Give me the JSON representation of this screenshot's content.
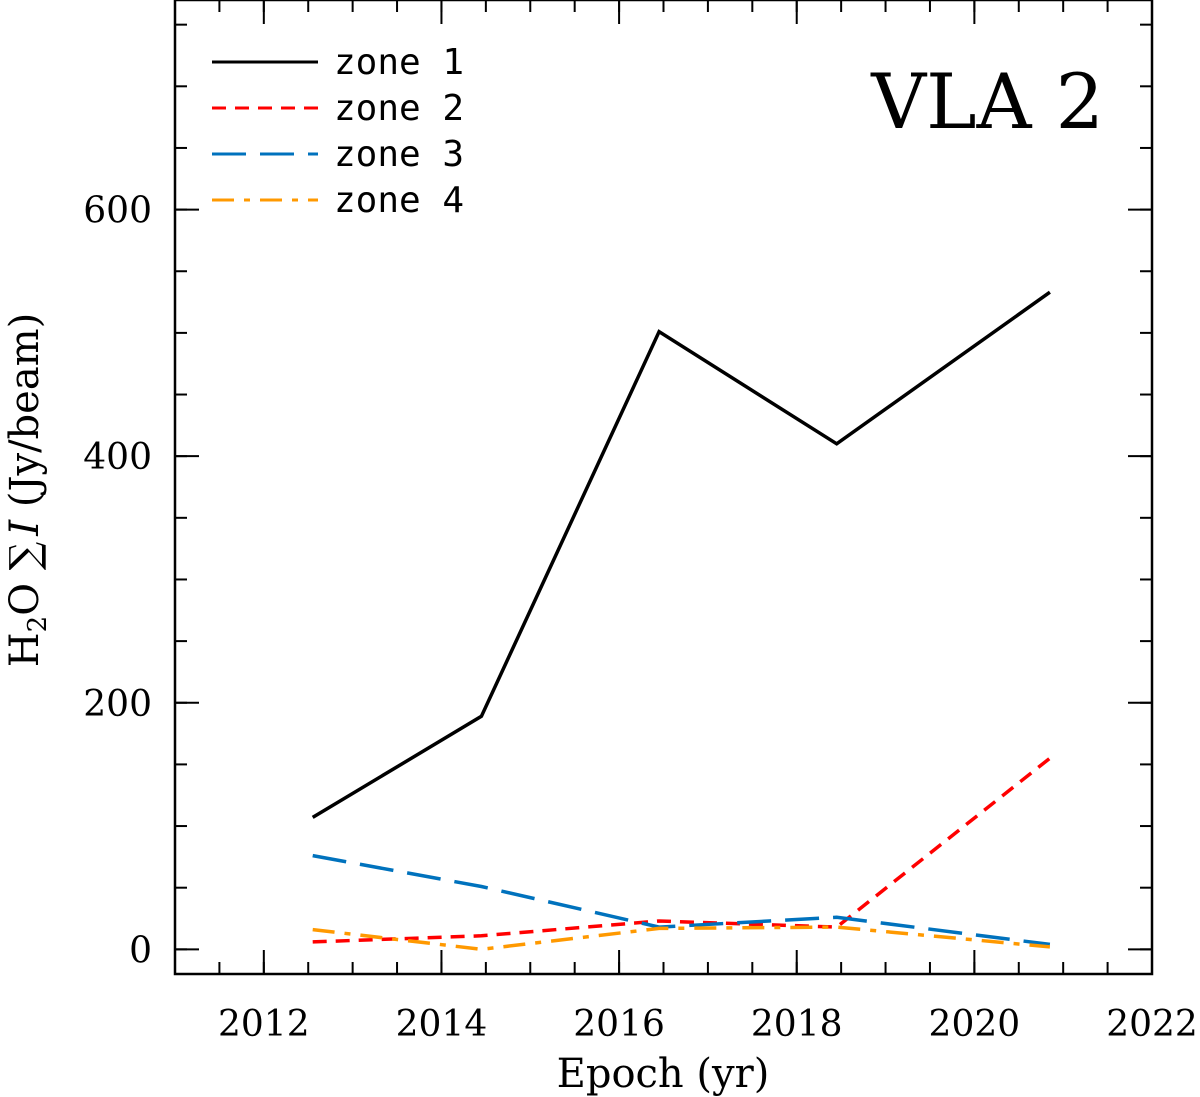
{
  "chart_data": {
    "type": "line",
    "title": "",
    "panel_label": "VLA 2",
    "xlabel": "Epoch (yr)",
    "ylabel": {
      "prefix": "H",
      "subscript": "2",
      "mid": "O ",
      "sum": "∑",
      "italic": "I",
      "suffix": " (Jy/beam)"
    },
    "xlim": [
      2011.0,
      2022.0
    ],
    "ylim": [
      -20,
      770
    ],
    "x_ticks": [
      2012,
      2014,
      2016,
      2018,
      2020,
      2022
    ],
    "x_tick_labels": [
      "2012",
      "2014",
      "2016",
      "2018",
      "2020",
      "2022"
    ],
    "y_ticks": [
      0,
      200,
      400,
      600
    ],
    "y_tick_labels": [
      "0",
      "200",
      "400",
      "600"
    ],
    "x_minor_step": 0.5,
    "y_minor_step": 50,
    "legend_position": "top-left",
    "grid": false,
    "series": [
      {
        "name": "zone 1",
        "color": "#000000",
        "dash": "solid",
        "x": [
          2012.55,
          2014.45,
          2016.45,
          2018.45,
          2020.85
        ],
        "y": [
          107,
          189,
          501,
          410,
          533
        ]
      },
      {
        "name": "zone 2",
        "color": "#ff0000",
        "dash": "short",
        "x": [
          2012.55,
          2014.45,
          2016.45,
          2018.45,
          2020.85
        ],
        "y": [
          6,
          11,
          23,
          18,
          155
        ]
      },
      {
        "name": "zone 3",
        "color": "#0072bd",
        "dash": "long",
        "x": [
          2012.55,
          2014.45,
          2016.45,
          2018.45,
          2020.85
        ],
        "y": [
          76,
          51,
          18,
          26,
          4
        ]
      },
      {
        "name": "zone 4",
        "color": "#ff9900",
        "dash": "dashdot",
        "x": [
          2012.55,
          2014.45,
          2016.45,
          2018.45,
          2020.85
        ],
        "y": [
          16,
          0,
          17,
          18,
          2
        ]
      }
    ]
  }
}
